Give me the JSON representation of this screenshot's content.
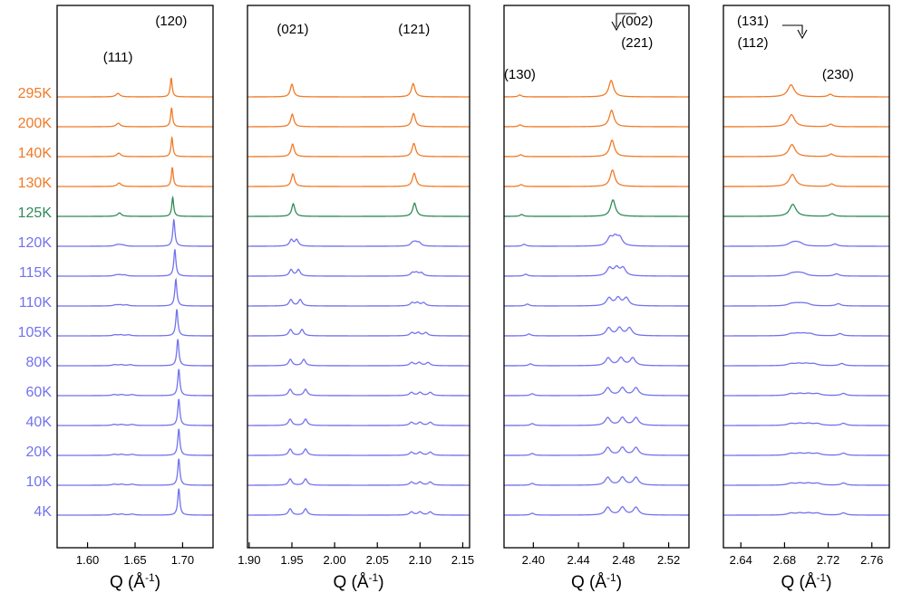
{
  "chart_data": {
    "type": "line",
    "description_text": "Stacked diffraction profiles vs temperature",
    "temperatures": [
      {
        "label": "295K",
        "phase": "high"
      },
      {
        "label": "200K",
        "phase": "high"
      },
      {
        "label": "140K",
        "phase": "high"
      },
      {
        "label": "130K",
        "phase": "high"
      },
      {
        "label": "125K",
        "phase": "transition"
      },
      {
        "label": "120K",
        "phase": "low"
      },
      {
        "label": "115K",
        "phase": "low"
      },
      {
        "label": "110K",
        "phase": "low"
      },
      {
        "label": "105K",
        "phase": "low"
      },
      {
        "label": "80K",
        "phase": "low"
      },
      {
        "label": "60K",
        "phase": "low"
      },
      {
        "label": "40K",
        "phase": "low"
      },
      {
        "label": "20K",
        "phase": "low"
      },
      {
        "label": "10K",
        "phase": "low"
      },
      {
        "label": "4K",
        "phase": "low"
      }
    ],
    "colors": {
      "high": "#f07a26",
      "transition": "#2e8b57",
      "low": "#7272ee",
      "frame": "#000000"
    },
    "panels": [
      {
        "xlabel": "Q (Å-1)",
        "xlim": [
          1.568,
          1.732
        ],
        "ticks": [
          1.6,
          1.65,
          1.7
        ],
        "tick_labels": [
          "1.60",
          "1.65",
          "1.70"
        ],
        "peaks": [
          {
            "label": "(111)",
            "center": 1.632,
            "high_amp": 0.55,
            "low_amp": 0.3,
            "low_split": [
              1.628,
              1.636,
              1.647
            ],
            "width": 0.0025
          },
          {
            "label": "(120)",
            "center": 1.688,
            "high_amp": 3.0,
            "low_amp": 4.2,
            "low_split": [
              1.696
            ],
            "width": 0.0012
          }
        ],
        "peak_labels": [
          {
            "text": "(111)",
            "q": 1.632,
            "y_rank": 1
          },
          {
            "text": "(120)",
            "q": 1.688,
            "y_rank": 0
          }
        ]
      },
      {
        "xlabel": "Q (Å-1)",
        "xlim": [
          1.898,
          2.158
        ],
        "ticks": [
          1.9,
          1.95,
          2.0,
          2.05,
          2.1,
          2.15
        ],
        "tick_labels": [
          "1.90",
          "1.95",
          "2.00",
          "2.05",
          "2.10",
          "2.15"
        ],
        "peaks": [
          {
            "label": "(021)",
            "center": 1.95,
            "high_amp": 2.0,
            "low_amp": 1.2,
            "low_split": [
              1.948,
              1.966
            ],
            "width": 0.0022
          },
          {
            "label": "(121)",
            "center": 2.092,
            "high_amp": 2.1,
            "low_amp": 0.9,
            "low_split": [
              2.09,
              2.1,
              2.112
            ],
            "width": 0.0025
          }
        ],
        "peak_labels": [
          {
            "text": "(021)",
            "q": 1.951,
            "y_rank": 1
          },
          {
            "text": "(121)",
            "q": 2.093,
            "y_rank": 1
          }
        ]
      },
      {
        "xlabel": "Q (Å-1)",
        "xlim": [
          2.374,
          2.538
        ],
        "ticks": [
          2.4,
          2.44,
          2.48,
          2.52
        ],
        "tick_labels": [
          "2.40",
          "2.44",
          "2.48",
          "2.52"
        ],
        "peaks": [
          {
            "label": "(130)",
            "center": 2.388,
            "high_amp": 0.3,
            "low_amp": 0.3,
            "low_split": [
              2.399
            ],
            "width": 0.0018
          },
          {
            "label": "(002)/(221)",
            "center": 2.469,
            "high_amp": 2.6,
            "low_amp": 2.2,
            "low_split": [
              2.466,
              2.479,
              2.491
            ],
            "width": 0.0025
          }
        ],
        "peak_labels": [
          {
            "text": "(130)",
            "q": 2.388,
            "y_rank": 2
          },
          {
            "text": "(002)",
            "q": 2.492,
            "y_rank": 0
          },
          {
            "text": "(221)",
            "q": 2.492,
            "y_rank": 1
          }
        ]
      },
      {
        "xlabel": "Q (Å-1)",
        "xlim": [
          2.624,
          2.776
        ],
        "ticks": [
          2.64,
          2.68,
          2.72,
          2.76
        ],
        "tick_labels": [
          "2.64",
          "2.68",
          "2.72",
          "2.76"
        ],
        "peaks": [
          {
            "label": "(131)/(112)",
            "center": 2.686,
            "high_amp": 1.9,
            "low_amp": 0.7,
            "low_split": [
              2.686,
              2.694,
              2.702,
              2.71
            ],
            "width": 0.0035
          },
          {
            "label": "(230)",
            "center": 2.722,
            "high_amp": 0.4,
            "low_amp": 0.35,
            "low_split": [
              2.734
            ],
            "width": 0.0025
          }
        ],
        "peak_labels": [
          {
            "text": "(131)",
            "q": 2.651,
            "y_rank": 0
          },
          {
            "text": "(112)",
            "q": 2.651,
            "y_rank": 1
          },
          {
            "text": "(230)",
            "q": 2.729,
            "y_rank": 2
          }
        ]
      }
    ]
  }
}
